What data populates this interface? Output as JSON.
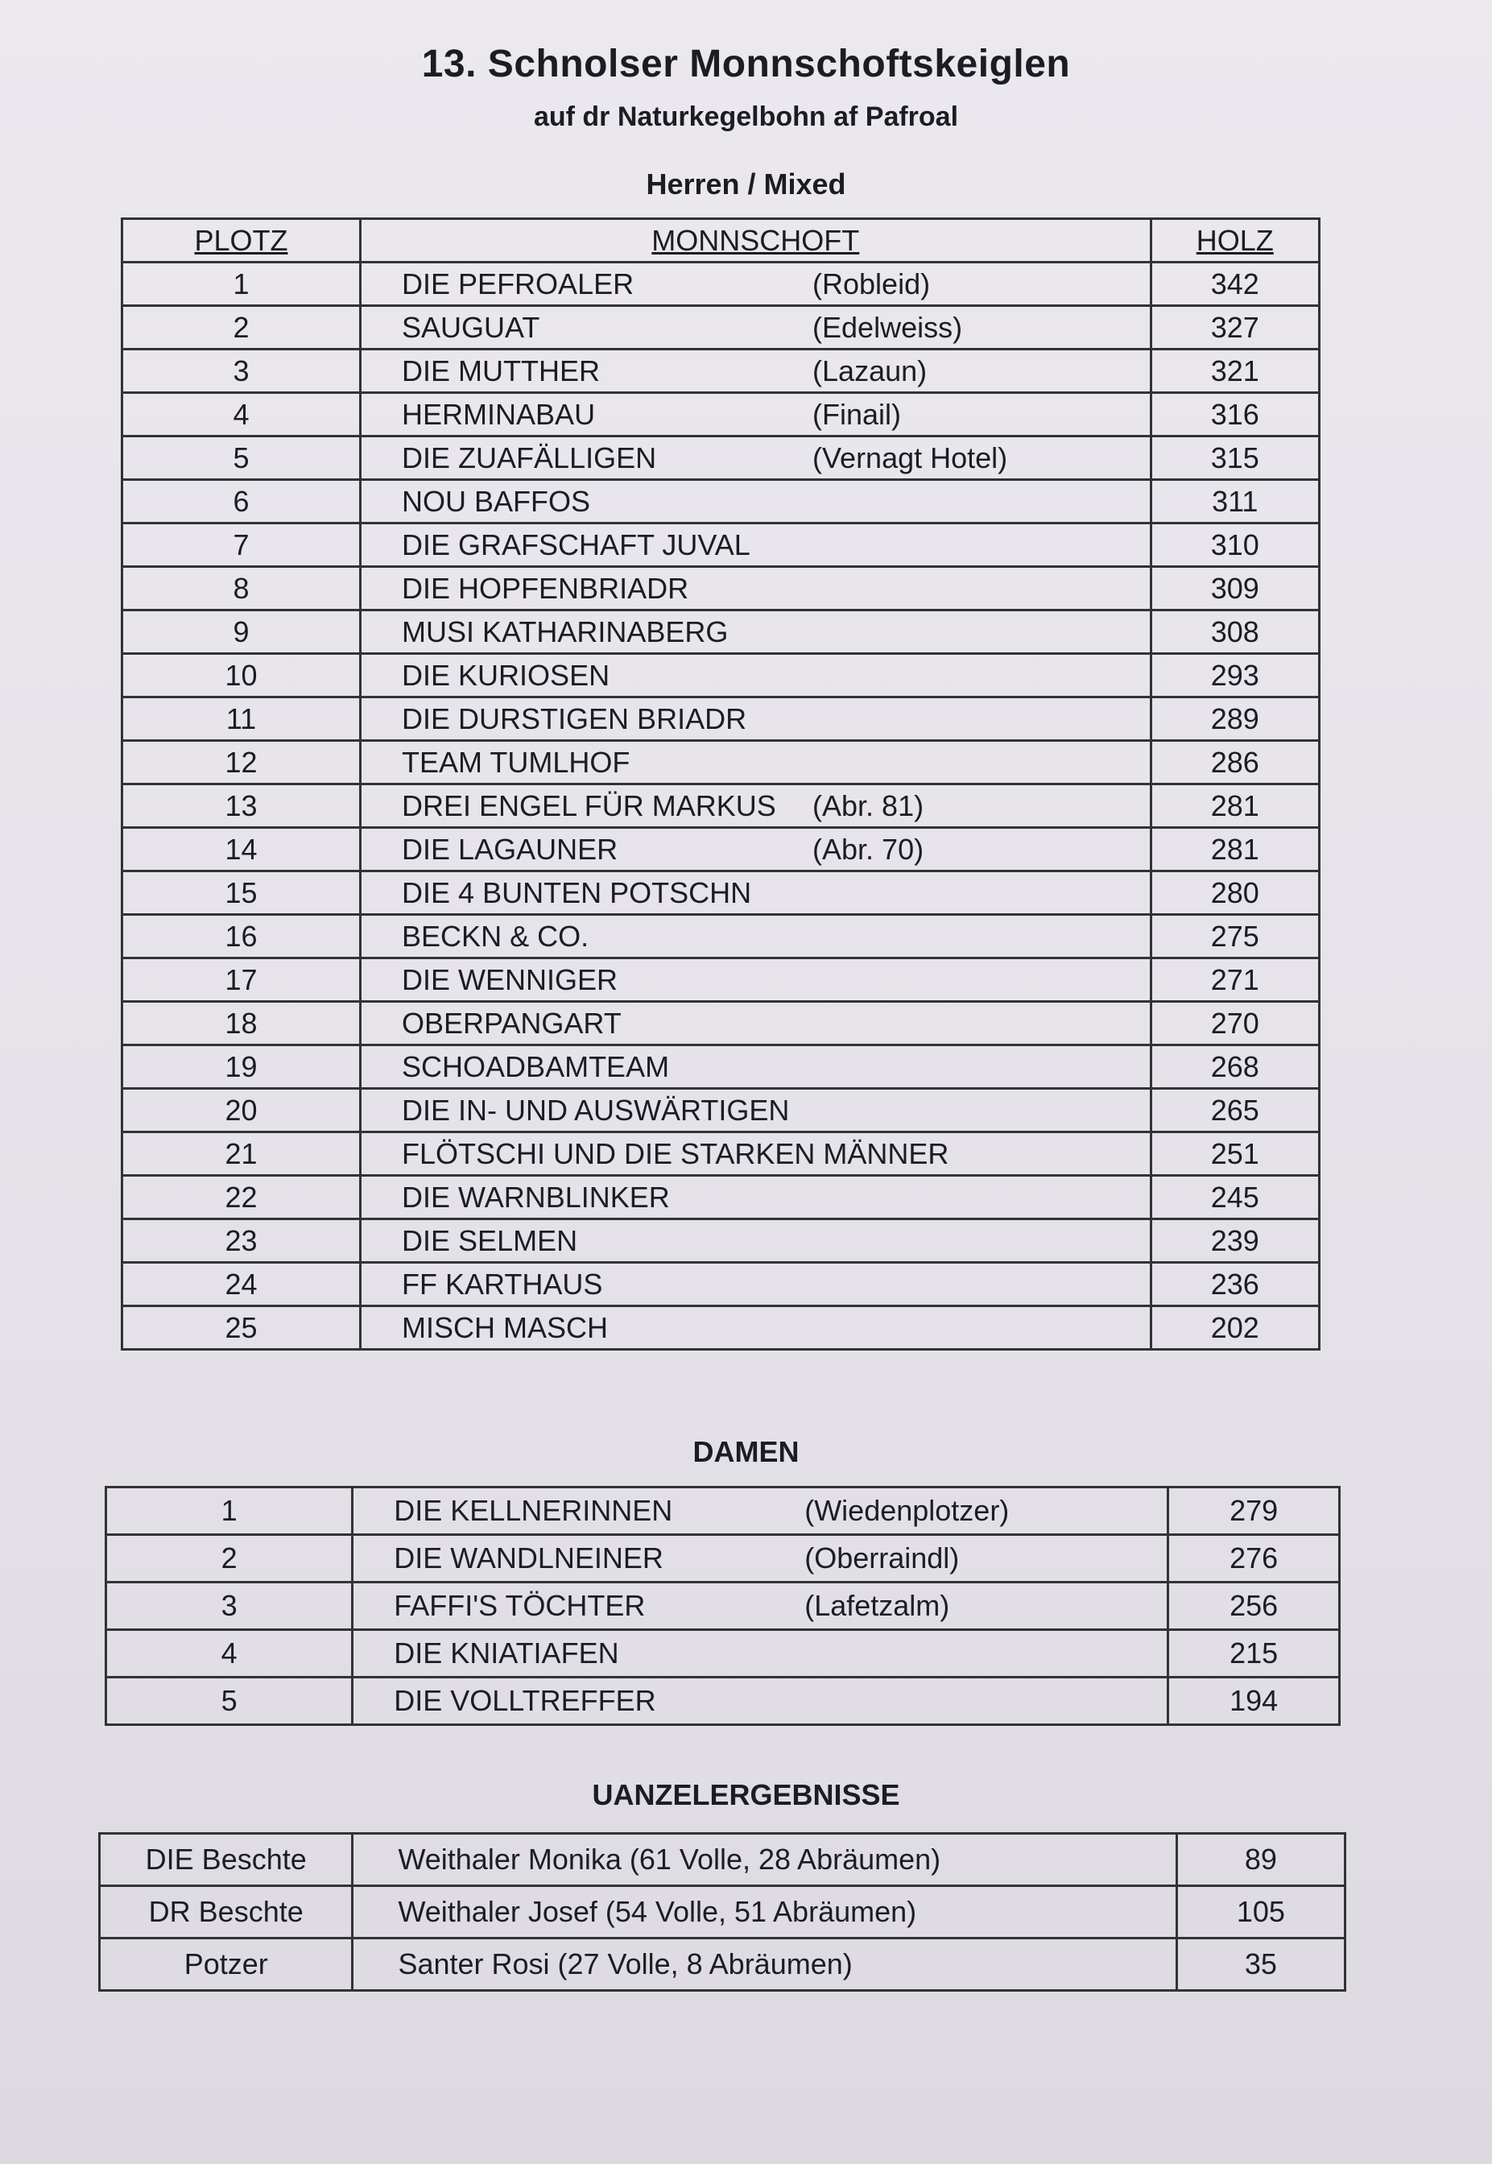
{
  "title": "13. Schnolser Monnschoftskeiglen",
  "subtitle": "auf dr Naturkegelbohn af Pafroal",
  "herren": {
    "heading": "Herren / Mixed",
    "columns": [
      "PLOTZ",
      "MONNSCHOFT",
      "HOLZ"
    ],
    "rows": [
      {
        "place": "1",
        "team": "DIE PEFROALER",
        "club": "(Robleid)",
        "holz": "342"
      },
      {
        "place": "2",
        "team": "SAUGUAT",
        "club": "(Edelweiss)",
        "holz": "327"
      },
      {
        "place": "3",
        "team": "DIE MUTTHER",
        "club": "(Lazaun)",
        "holz": "321"
      },
      {
        "place": "4",
        "team": "HERMINABAU",
        "club": "(Finail)",
        "holz": "316"
      },
      {
        "place": "5",
        "team": "DIE ZUAFÄLLIGEN",
        "club": "(Vernagt Hotel)",
        "holz": "315"
      },
      {
        "place": "6",
        "team": "NOU BAFFOS",
        "club": "",
        "holz": "311"
      },
      {
        "place": "7",
        "team": "DIE GRAFSCHAFT JUVAL",
        "club": "",
        "holz": "310"
      },
      {
        "place": "8",
        "team": "DIE HOPFENBRIADR",
        "club": "",
        "holz": "309"
      },
      {
        "place": "9",
        "team": "MUSI KATHARINABERG",
        "club": "",
        "holz": "308"
      },
      {
        "place": "10",
        "team": "DIE KURIOSEN",
        "club": "",
        "holz": "293"
      },
      {
        "place": "11",
        "team": "DIE DURSTIGEN BRIADR",
        "club": "",
        "holz": "289"
      },
      {
        "place": "12",
        "team": "TEAM TUMLHOF",
        "club": "",
        "holz": "286"
      },
      {
        "place": "13",
        "team": "DREI ENGEL FÜR MARKUS",
        "club": "(Abr. 81)",
        "holz": "281"
      },
      {
        "place": "14",
        "team": "DIE LAGAUNER",
        "club": "(Abr. 70)",
        "holz": "281"
      },
      {
        "place": "15",
        "team": "DIE 4 BUNTEN POTSCHN",
        "club": "",
        "holz": "280"
      },
      {
        "place": "16",
        "team": "BECKN & CO.",
        "club": "",
        "holz": "275"
      },
      {
        "place": "17",
        "team": "DIE WENNIGER",
        "club": "",
        "holz": "271"
      },
      {
        "place": "18",
        "team": "OBERPANGART",
        "club": "",
        "holz": "270"
      },
      {
        "place": "19",
        "team": "SCHOADBAMTEAM",
        "club": "",
        "holz": "268"
      },
      {
        "place": "20",
        "team": "DIE IN- UND AUSWÄRTIGEN",
        "club": "",
        "holz": "265"
      },
      {
        "place": "21",
        "team": "FLÖTSCHI UND DIE STARKEN MÄNNER",
        "club": "",
        "holz": "251"
      },
      {
        "place": "22",
        "team": "DIE WARNBLINKER",
        "club": "",
        "holz": "245"
      },
      {
        "place": "23",
        "team": "DIE SELMEN",
        "club": "",
        "holz": "239"
      },
      {
        "place": "24",
        "team": "FF KARTHAUS",
        "club": "",
        "holz": "236"
      },
      {
        "place": "25",
        "team": "MISCH MASCH",
        "club": "",
        "holz": "202"
      }
    ]
  },
  "damen": {
    "heading": "DAMEN",
    "rows": [
      {
        "place": "1",
        "team": "DIE KELLNERINNEN",
        "club": "(Wiedenplotzer)",
        "holz": "279"
      },
      {
        "place": "2",
        "team": "DIE WANDLNEINER",
        "club": "(Oberraindl)",
        "holz": "276"
      },
      {
        "place": "3",
        "team": "FAFFI'S TÖCHTER",
        "club": "(Lafetzalm)",
        "holz": "256"
      },
      {
        "place": "4",
        "team": "DIE KNIATIAFEN",
        "club": "",
        "holz": "215"
      },
      {
        "place": "5",
        "team": "DIE VOLLTREFFER",
        "club": "",
        "holz": "194"
      }
    ]
  },
  "einzel": {
    "heading": "UANZELERGEBNISSE",
    "rows": [
      {
        "label": "DIE Beschte",
        "name": "Weithaler Monika (61 Volle, 28 Abräumen)",
        "holz": "89"
      },
      {
        "label": "DR Beschte",
        "name": "Weithaler Josef (54 Volle, 51 Abräumen)",
        "holz": "105"
      },
      {
        "label": "Potzer",
        "name": "Santer Rosi (27 Volle, 8 Abräumen)",
        "holz": "35"
      }
    ]
  }
}
